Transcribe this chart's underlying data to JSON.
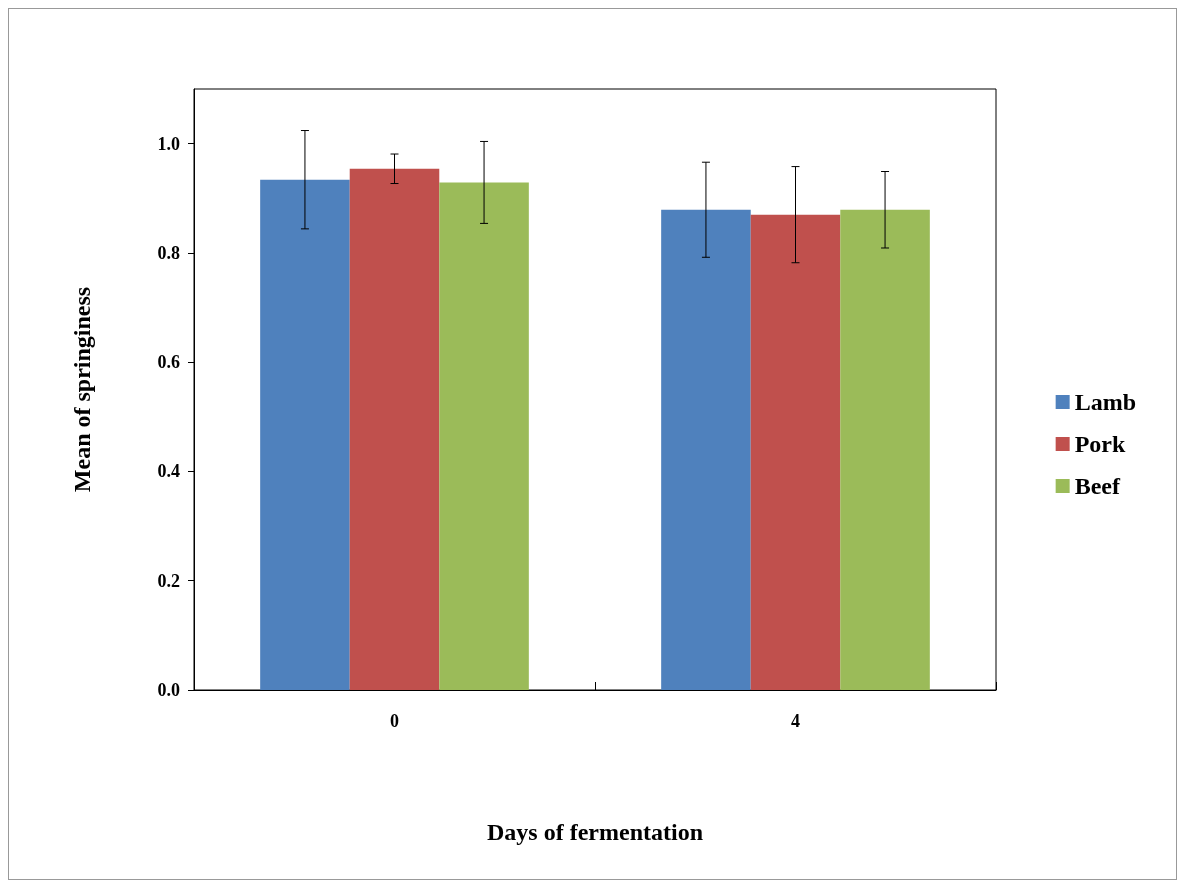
{
  "chart_data": {
    "type": "bar",
    "xlabel": "Days of fermentation",
    "ylabel": "Mean of springiness",
    "categories": [
      "0",
      "4"
    ],
    "series": [
      {
        "name": "Lamb",
        "color": "#4f81bd",
        "values": [
          0.934,
          0.879
        ],
        "errors": [
          0.09,
          0.087
        ]
      },
      {
        "name": "Pork",
        "color": "#c0504d",
        "values": [
          0.954,
          0.87
        ],
        "errors": [
          0.027,
          0.088
        ]
      },
      {
        "name": "Beef",
        "color": "#9bbb59",
        "values": [
          0.929,
          0.879
        ],
        "errors": [
          0.075,
          0.07
        ]
      }
    ],
    "ylim": [
      0,
      1.1
    ],
    "yticks": [
      {
        "value": 0,
        "label": "0.0"
      },
      {
        "value": 0.2,
        "label": "0.2"
      },
      {
        "value": 0.4,
        "label": "0.4"
      },
      {
        "value": 0.6,
        "label": "0.6"
      },
      {
        "value": 0.8,
        "label": "0.8"
      },
      {
        "value": 1,
        "label": "1.0"
      }
    ],
    "grid": false,
    "legend": "right"
  }
}
